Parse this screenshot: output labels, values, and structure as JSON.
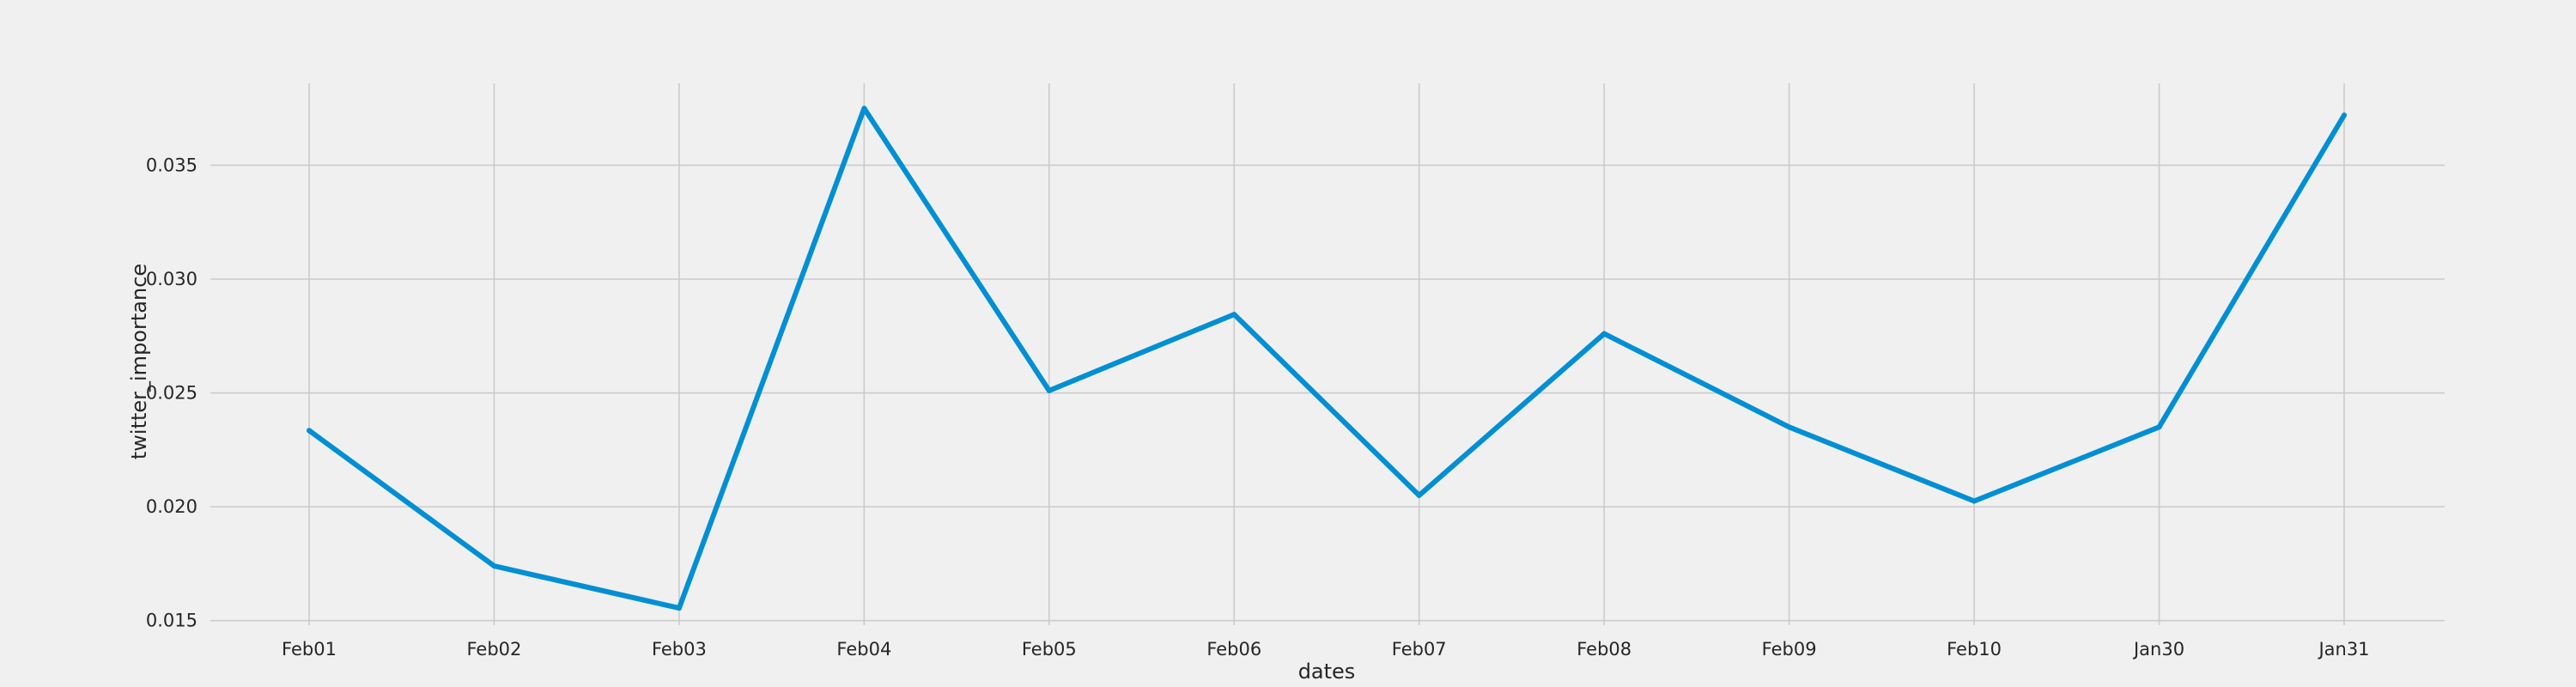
{
  "chart_data": {
    "type": "line",
    "title": "",
    "xlabel": "dates",
    "ylabel": "twitter_importance",
    "categories": [
      "Feb01",
      "Feb02",
      "Feb03",
      "Feb04",
      "Feb05",
      "Feb06",
      "Feb07",
      "Feb08",
      "Feb09",
      "Feb10",
      "Jan30",
      "Jan31"
    ],
    "series": [
      {
        "values": [
          0.02335,
          0.0174,
          0.01555,
          0.0375,
          0.0251,
          0.02845,
          0.0205,
          0.0276,
          0.0235,
          0.02025,
          0.0235,
          0.0372
        ]
      }
    ],
    "ylim": [
      0.0148,
      0.0386
    ],
    "yticks": [
      "0.015",
      "0.020",
      "0.025",
      "0.030",
      "0.035"
    ],
    "ytick_values": [
      0.015,
      0.02,
      0.025,
      0.03,
      0.035
    ],
    "grid": true,
    "legend": "none",
    "colors": {
      "line": "#008fd5",
      "grid": "#cbcbcb",
      "background": "#f0f0f0"
    }
  }
}
